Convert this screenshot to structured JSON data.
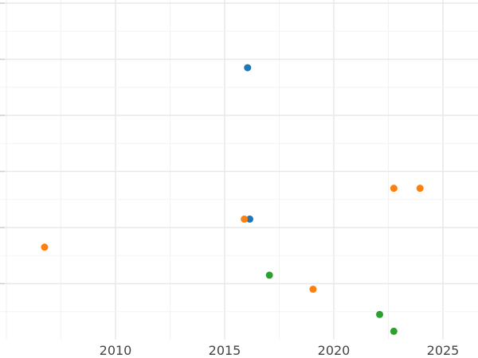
{
  "chart_data": {
    "type": "scatter",
    "title": "",
    "xlabel": "",
    "ylabel": "",
    "xlim": [
      2005,
      2026.5
    ],
    "ylim": [
      0,
      6
    ],
    "x_ticks": [
      2010,
      2015,
      2020,
      2025
    ],
    "x_tick_labels": [
      "2010",
      "2015",
      "2020",
      "2025"
    ],
    "y_gridlines": [
      1,
      2,
      3,
      4,
      5,
      6
    ],
    "grid": true,
    "legend": "none",
    "series": [
      {
        "color": "#1f77b4",
        "x": [
          2016.05,
          2016.15
        ],
        "y": [
          4.85,
          2.15
        ]
      },
      {
        "color": "#ff7f0e",
        "x": [
          2006.75,
          2015.9,
          2019.05,
          2022.75,
          2023.95
        ],
        "y": [
          1.65,
          2.15,
          0.9,
          2.7,
          2.7
        ]
      },
      {
        "color": "#2ca02c",
        "x": [
          2017.05,
          2022.1,
          2022.75
        ],
        "y": [
          1.15,
          0.45,
          0.15
        ]
      }
    ]
  }
}
